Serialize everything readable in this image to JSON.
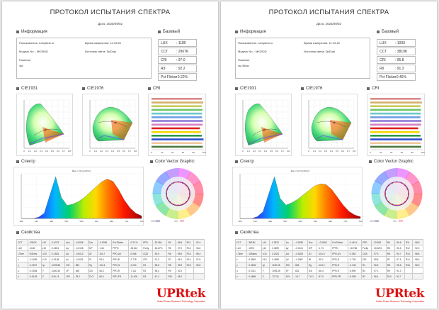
{
  "pages": [
    {
      "title": "ПРОТОКОЛ ИСПЫТАНИЯ СПЕКТРА",
      "date": "Дата: 2025/09/02",
      "info": {
        "header": "Информация",
        "user_label": "Пользователь: Lamptest.ru",
        "time_label": "Время измерения: 11:19:55",
        "model_label": "Модель No. : MK350D",
        "source_label": "Источник света: DpDupi",
        "note_label": "Пометки:",
        "note_value": "4м"
      },
      "basic": {
        "header": "Базовый",
        "rows": [
          {
            "label": "LUX",
            "value": ": 1180"
          },
          {
            "label": "CCT",
            "value": ": 2967K"
          },
          {
            "label": "CRI",
            "value": ": 97.0"
          },
          {
            "label": "R9",
            "value": ": 92.2"
          },
          {
            "label": "Pct Flicker",
            "value": ": 0.22%"
          }
        ]
      },
      "cie1931": "CIE1931",
      "cie1976": "CIE1976",
      "cri_header": "CRI",
      "cri_values": [
        96.1,
        98.8,
        95.9,
        97.3,
        96.7,
        96.4,
        98.0,
        97.4,
        92.2,
        94.6,
        96.2,
        99.2,
        97.0,
        97.8
      ],
      "spectrum_header": "Спектр",
      "spectrum_max": "Max = 15.1(mW/m²)",
      "cvg_header": "Color Vector Graphic",
      "cvg_legend": [
        "reference",
        "test"
      ],
      "props_header": "Свойства",
      "props_rows": [
        [
          "CCT",
          ": 2967K",
          "x10",
          ": 0.4373",
          "Δuv",
          ": -0.0056",
          "Duv",
          ": -0.0036",
          "Pct Flicker",
          ": 0.22 %",
          "PPD",
          ": 25.364",
          "R4",
          ": 96.6",
          "R11",
          ": 92.4"
        ],
        [
          "LUX",
          ": 1180",
          "y10",
          ": 0.3821",
          "Δy",
          ": -0.0108",
          "S/P",
          ": 1.46",
          "PPFD",
          ": 28.641",
          "Purity",
          ": 46.67%",
          "R5",
          ": 97.0",
          "R12",
          ": 94.8"
        ],
        [
          "I-Time",
          ": 840ms",
          "u'10",
          ": 0.2581",
          "Δu'",
          ": -0.0012",
          "λD",
          ": 103.7",
          "PPD-UV",
          ": 0.066",
          "CQS",
          ": 93.9",
          "R6",
          ": 96.9",
          "R13",
          ": 98.4"
        ],
        [
          "x",
          ": 0.4339",
          "v'10",
          ": 0.5184",
          "Δv'",
          ": -0.0051",
          "Rf",
          ": 93.6",
          "PPD-B",
          ": 2.778",
          "CRI",
          ": 97.0",
          "R7",
          ": 96.1",
          "R14",
          ": 97.8"
        ],
        [
          "y",
          ": 0.3947",
          "λp",
          ": 1299.86",
          "SSI",
          ": 584",
          "Rg",
          ": 104.4",
          "PPD-G",
          ": 2.234",
          "R1",
          ": 98.8",
          "R8",
          ": 95.9",
          "R15",
          ": 96.8"
        ],
        [
          "u'",
          ": 0.2538",
          "Y",
          ": 1180.45",
          "λP",
          ": 635",
          "G4I",
          ": 64.6",
          "PPD-R",
          ": 7.111",
          "R2",
          ": 98.4",
          "R9",
          ": 92.2",
          "",
          ""
        ],
        [
          "v'",
          ": 0.5193",
          "Z",
          ": 515.13",
          "λPV",
          ": 25.2",
          "TLCI",
          ": 84.5",
          "PPD-FR",
          ": 11.405",
          "R3",
          ": 97.4",
          "R10",
          ": 98.2",
          "",
          ""
        ]
      ],
      "spd": [
        0,
        0,
        0,
        0.5,
        2,
        9,
        16,
        8,
        5,
        5.5,
        6.5,
        8,
        10,
        12,
        14,
        15.1,
        14.2,
        11,
        7,
        4,
        2,
        1
      ],
      "logo": {
        "brand": "UPRtek",
        "tagline": "United Power Research Technology Corporation"
      }
    },
    {
      "title": "ПРОТОКОЛ ИСПЫТАНИЯ СПЕКТРА",
      "date": "Дата: 2025/09/02",
      "info": {
        "header": "Информация",
        "user_label": "Пользователь: Lamptest.ru",
        "time_label": "Время измерения: 11:19:16",
        "model_label": "Модель No. : MK350D",
        "source_label": "Источник света: DpDupi",
        "note_label": "Пометки:",
        "note_value": "4м 45см"
      },
      "basic": {
        "header": "Базовый",
        "rows": [
          {
            "label": "LUX",
            "value": ": 1093"
          },
          {
            "label": "CCT",
            "value": ": 3819K"
          },
          {
            "label": "CRI",
            "value": ": 95.8"
          },
          {
            "label": "R9",
            "value": ": 91.3"
          },
          {
            "label": "Pct Flicker",
            "value": ": 0.46%"
          }
        ]
      },
      "cie1931": "CIE1931",
      "cie1976": "CIE1976",
      "cri_header": "CRI",
      "cri_values": [
        96.4,
        98.5,
        95.9,
        96.9,
        96.3,
        95.8,
        97.5,
        97.1,
        91.3,
        93.8,
        96.0,
        98.8,
        96.5,
        97.1
      ],
      "spectrum_header": "Спектр",
      "spectrum_max": "Max = 18.7(mW/m²)",
      "cvg_header": "Color Vector Graphic",
      "cvg_legend": [
        "reference",
        "test"
      ],
      "props_header": "Свойства",
      "props_rows": [
        [
          "CCT",
          ": 3819K",
          "x10",
          ": 0.3872",
          "Δu",
          ": -0.0039",
          "Duv",
          ": -0.0048",
          "Pct Flicker",
          ": 0.46 %",
          "PPD",
          ": 20.663",
          "R4",
          ": 96.6",
          "R11",
          ": 96.8"
        ],
        [
          "LUX",
          ": 1093",
          "y10",
          ": 0.3699",
          "Δy",
          ": -0.0115",
          "S/P",
          ": 1.73",
          "PPFD",
          ": 18.766",
          "Purity",
          ": 26.36%",
          "R5",
          ": 96.5",
          "R12",
          ": 92.3"
        ],
        [
          "I-Time",
          ": 1066ms",
          "u'10",
          ": 0.2324",
          "Δu'",
          ": -0.0023",
          "λD",
          ": 101.5",
          "PPD-UV",
          ": 0.052",
          "CQS",
          ": 97.5",
          "R6",
          ": 94.7",
          "R13",
          ": 98.8"
        ],
        [
          "x",
          ": 0.3849",
          "v'10",
          ": 0.4995",
          "Δv'",
          ": -0.0067",
          "Rf",
          ": 95.1",
          "PPD-B",
          ": 2.709",
          "CRI",
          ": 95.8",
          "R7",
          ": 97.5",
          "R14",
          ": 98.6"
        ],
        [
          "y",
          ": 0.3605",
          "λp",
          ": 1139.45",
          "SSI",
          ": 583",
          "Rg",
          ": 104.2",
          "PPD-G",
          ": 3.136",
          "R1",
          ": 96.9",
          "R8",
          ": 98.6",
          "R15",
          ": 96.3"
        ],
        [
          "u'",
          ": 0.2311",
          "Y",
          ": 1093.36",
          "λP",
          ": 632",
          "G4I",
          ": 66.4",
          "PPD-R",
          ": 6.695",
          "R2",
          ": 97.1",
          "R9",
          ": 91.3",
          "",
          ""
        ],
        [
          "v'",
          ": 0.4868",
          "Z",
          ": 727.51",
          "λPV",
          ": 19.7",
          "TLCI",
          ": 87.0",
          "PPD-FR",
          ": 8.098",
          "R3",
          ": 96.4",
          "R10",
          ": 92.7",
          "",
          ""
        ]
      ],
      "spd": [
        0,
        0,
        0,
        0.8,
        3,
        11,
        18.7,
        9,
        6,
        7,
        8.5,
        10.5,
        12.5,
        14.5,
        15.5,
        15.2,
        13,
        9.5,
        6,
        3.2,
        1.6,
        0.8
      ],
      "logo": {
        "brand": "UPRtek",
        "tagline": "United Power Research Technology Corporation"
      }
    }
  ]
}
